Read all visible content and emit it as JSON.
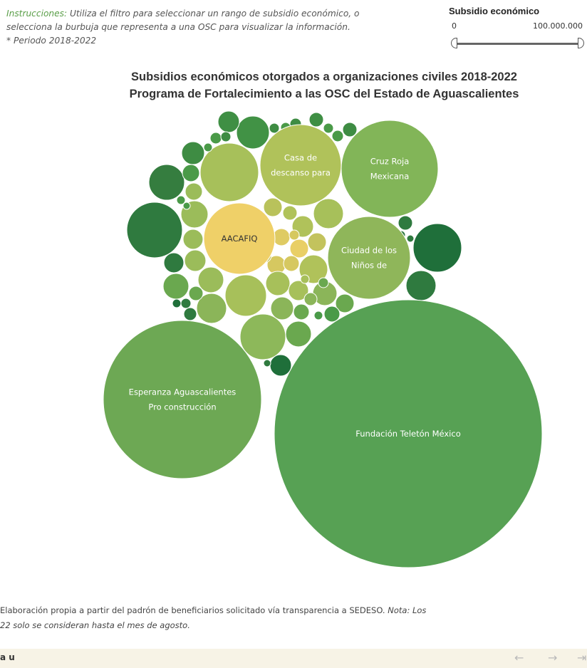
{
  "instructions": {
    "lead": "Instrucciones:",
    "line1_rest": " Utiliza el filtro para seleccionar un rango de subsidio económico, o",
    "line2": "selecciona la burbuja que representa a una OSC para visualizar la información.",
    "line3": "* Periodo 2018-2022"
  },
  "filter": {
    "title": "Subsidio económico",
    "min_label": "0",
    "max_label": "100.000.000",
    "range_low_fraction": 0.0,
    "range_high_fraction": 1.0
  },
  "chart_title": {
    "line1": "Subsidios económicos otorgados a organizaciones civiles 2018-2022",
    "line2": "Programa de Fortalecimiento a las OSC del Estado de Aguascalientes"
  },
  "chart_data": {
    "type": "bubble",
    "labeled_bubbles": [
      {
        "label_line1": "Fundación Teletón México",
        "label_line2": "",
        "color": "#57a154"
      },
      {
        "label_line1": "Esperanza Aguascalientes",
        "label_line2": "Pro construcción",
        "color": "#6da854"
      },
      {
        "label_line1": "Cruz Roja",
        "label_line2": "Mexicana",
        "color": "#82b558"
      },
      {
        "label_line1": "Casa de",
        "label_line2": "descanso para",
        "color": "#b0c25a"
      },
      {
        "label_line1": "Ciudad de los",
        "label_line2": "Niños de",
        "color": "#8fb65a"
      },
      {
        "label_line1": "AACAFIQ",
        "label_line2": "",
        "color": "#efd068"
      }
    ]
  },
  "source": {
    "line1_text": "Elaboración propia a partir del padrón de beneficiarios solicitado vía transparencia a SEDESO. ",
    "line1_note": "Nota: Los",
    "line2": "22 solo  se consideran hasta el mes de agosto."
  },
  "bottombar": {
    "logo_text": "a u",
    "back_icon": "←",
    "forward_icon": "→",
    "share_icon": "⇥"
  }
}
